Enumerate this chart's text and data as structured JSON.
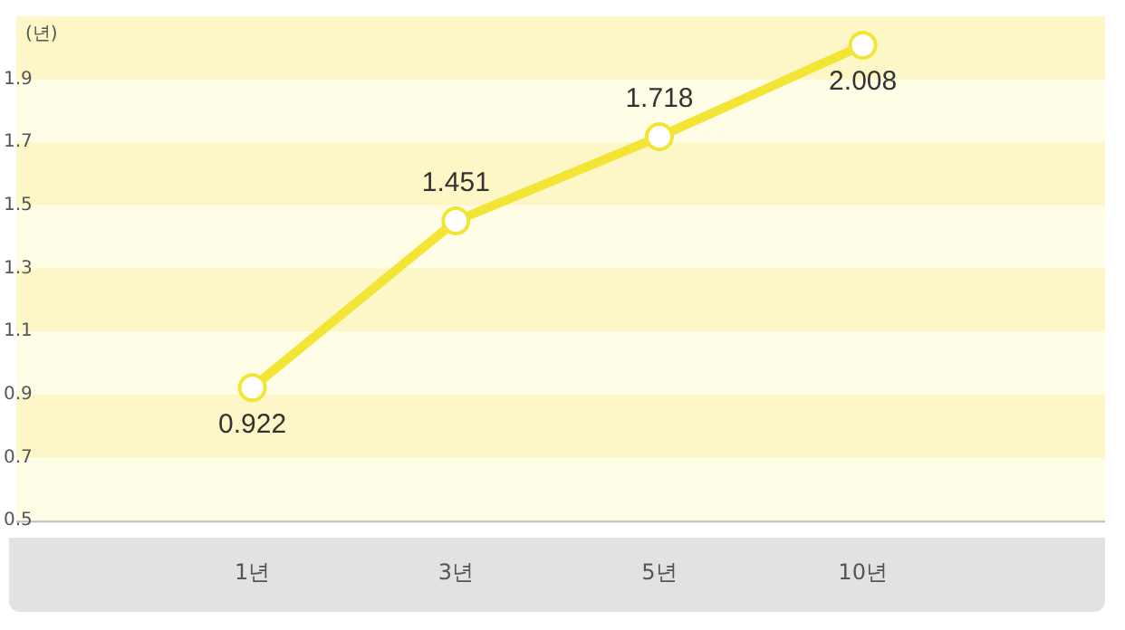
{
  "chart_data": {
    "type": "line",
    "ylabel": "(년)",
    "categories": [
      "1년",
      "3년",
      "5년",
      "10년"
    ],
    "series": [
      {
        "color": "#f2e536",
        "values": [
          0.922,
          1.451,
          1.718,
          2.008
        ]
      }
    ],
    "ylim": [
      0.5,
      2.1
    ],
    "yticks": [
      0.5,
      0.7,
      0.9,
      1.1,
      1.3,
      1.5,
      1.7,
      1.9
    ],
    "bands": [
      {
        "axis": "y",
        "from": 0.7,
        "to": 0.9,
        "color": "#fdf6c6"
      },
      {
        "axis": "y",
        "from": 1.1,
        "to": 1.3,
        "color": "#fdf6c6"
      },
      {
        "axis": "y",
        "from": 1.5,
        "to": 1.7,
        "color": "#fdf6c6"
      },
      {
        "axis": "y",
        "from": 1.9,
        "to": 2.1,
        "color": "#fdf6c6"
      }
    ],
    "marker": "circle",
    "line_style": "solid",
    "data_labels": true
  }
}
